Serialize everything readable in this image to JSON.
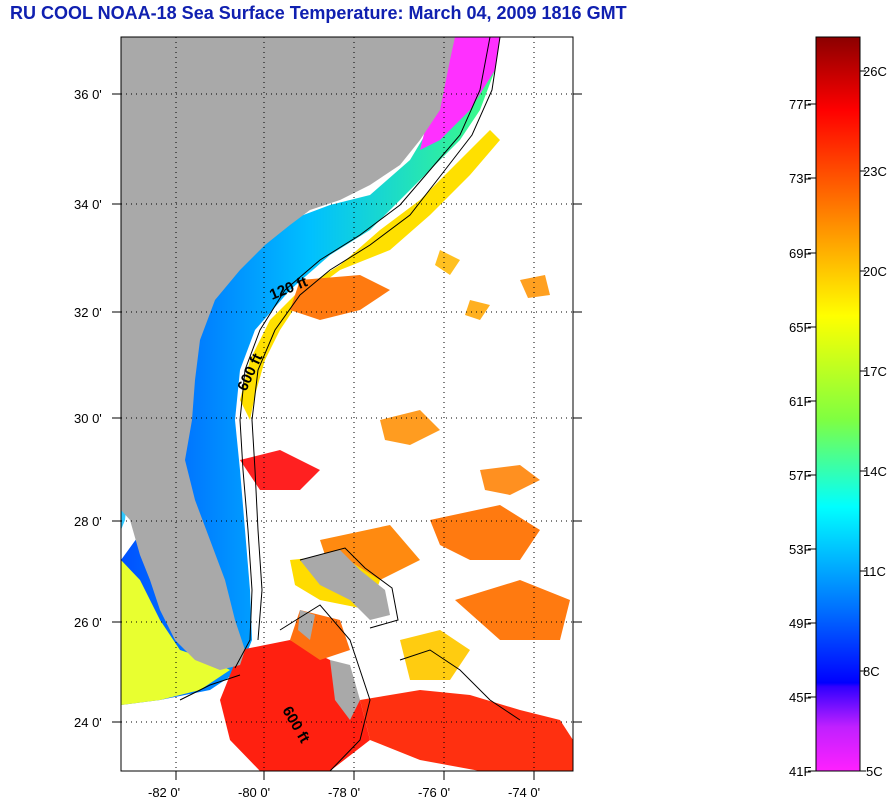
{
  "title": "RU COOL  NOAA-18  Sea Surface Temperature:  March 04, 2009 1816 GMT",
  "map": {
    "lon_range": [
      -83,
      -73
    ],
    "lat_range": [
      23,
      37
    ],
    "x_tick_labels": [
      "-82 0'",
      "-80 0'",
      "-78 0'",
      "-76 0'",
      "-74 0'"
    ],
    "x_tick_values": [
      -82,
      -80,
      -78,
      -76,
      -74
    ],
    "y_tick_labels": [
      "36 0'",
      "34 0'",
      "32 0'",
      "30 0'",
      "28 0'",
      "26 0'",
      "24 0'"
    ],
    "y_tick_values": [
      36,
      34,
      32,
      30,
      28,
      26,
      24
    ],
    "depth_labels": [
      "120 ft",
      "600 ft",
      "600 ft"
    ],
    "land_color": "#a9a9a9"
  },
  "colorbar": {
    "fahrenheit_labels": [
      "77F",
      "73F",
      "69F",
      "65F",
      "61F",
      "57F",
      "53F",
      "49F",
      "45F",
      "41F"
    ],
    "celsius_labels": [
      "26C",
      "23C",
      "20C",
      "17C",
      "14C",
      "11C",
      "8C",
      "5C"
    ],
    "colors_top_to_bottom": [
      "#8b0000",
      "#ff0000",
      "#ff8000",
      "#ffff00",
      "#80ff40",
      "#00ffff",
      "#0080ff",
      "#0000ff",
      "#0000ff",
      "#8000ff",
      "#ff00ff"
    ]
  }
}
